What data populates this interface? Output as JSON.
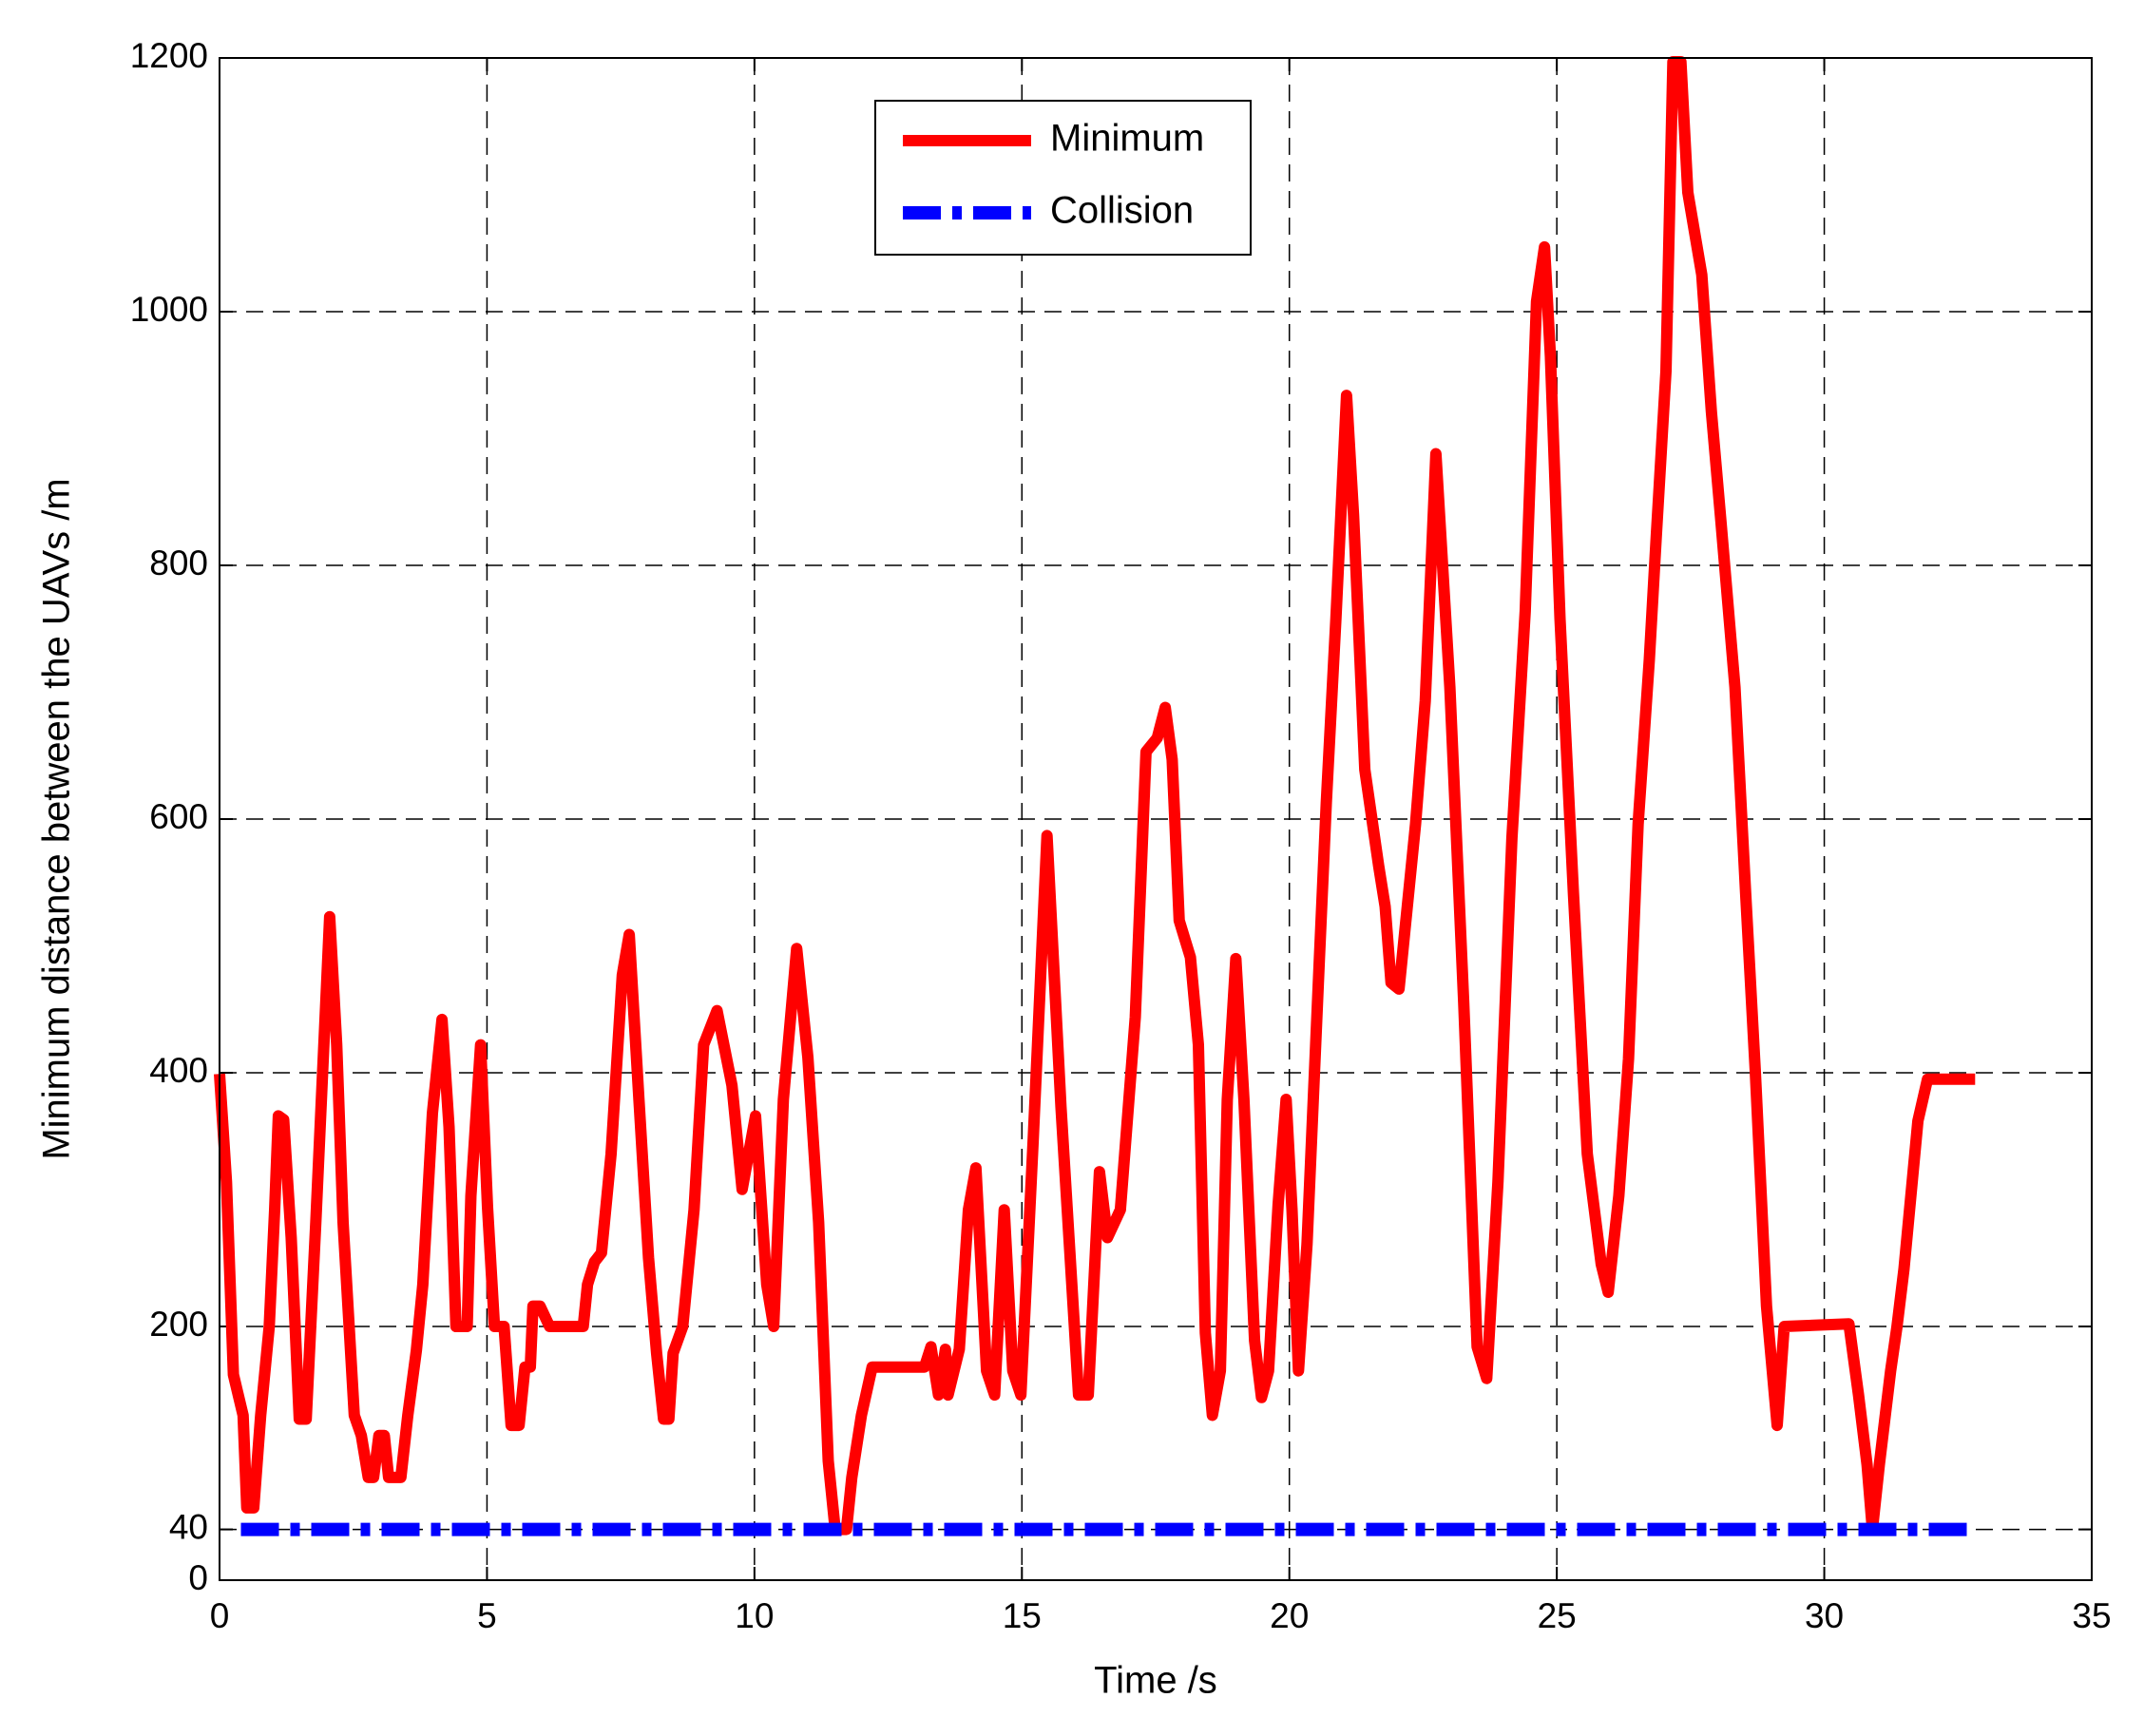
{
  "chart_data": {
    "type": "line",
    "xlabel": "Time /s",
    "ylabel": "Minimum distance between the UAVs /m",
    "xlim": [
      0,
      35
    ],
    "xticks": [
      0,
      5,
      10,
      15,
      20,
      25,
      30,
      35
    ],
    "ylim": [
      0,
      1200
    ],
    "yticks": [
      0,
      40,
      200,
      400,
      600,
      800,
      1000,
      1200
    ],
    "grid": true,
    "series": [
      {
        "name": "Minimum",
        "color": "#ff0000",
        "style": "solid",
        "x": [
          0,
          0.13,
          0.26,
          0.44,
          0.51,
          0.64,
          0.77,
          0.93,
          1.03,
          1.1,
          1.2,
          1.34,
          1.49,
          1.62,
          1.8,
          2.06,
          2.19,
          2.31,
          2.52,
          2.65,
          2.78,
          2.88,
          2.98,
          3.08,
          3.16,
          3.39,
          3.52,
          3.68,
          3.8,
          3.98,
          4.16,
          4.29,
          4.42,
          4.63,
          4.7,
          4.88,
          5.01,
          5.14,
          5.32,
          5.45,
          5.6,
          5.71,
          5.81,
          5.86,
          5.99,
          6.17,
          6.8,
          6.88,
          7.01,
          7.14,
          7.32,
          7.53,
          7.66,
          7.84,
          8.02,
          8.17,
          8.3,
          8.4,
          8.48,
          8.66,
          8.87,
          9.05,
          9.3,
          9.58,
          9.77,
          10.02,
          10.23,
          10.36,
          10.54,
          10.79,
          11.0,
          11.2,
          11.38,
          11.51,
          11.72,
          11.82,
          12.0,
          12.2,
          13.18,
          13.3,
          13.44,
          13.57,
          13.62,
          13.83,
          14.0,
          14.14,
          14.34,
          14.49,
          14.67,
          14.83,
          14.98,
          15.21,
          15.47,
          15.73,
          16.06,
          16.24,
          16.45,
          16.6,
          16.84,
          17.12,
          17.32,
          17.53,
          17.68,
          17.81,
          17.94,
          18.15,
          18.3,
          18.43,
          18.56,
          18.71,
          18.84,
          19.0,
          19.15,
          19.35,
          19.48,
          19.61,
          19.79,
          19.94,
          20.05,
          20.17,
          20.33,
          20.56,
          20.69,
          20.87,
          21.07,
          21.2,
          21.41,
          21.67,
          21.79,
          21.9,
          22.05,
          22.36,
          22.54,
          22.74,
          23.0,
          23.26,
          23.51,
          23.69,
          23.9,
          24.16,
          24.41,
          24.62,
          24.77,
          24.88,
          25.06,
          25.31,
          25.57,
          25.83,
          25.96,
          26.16,
          26.34,
          26.52,
          26.73,
          26.86,
          27.04,
          27.17,
          27.32,
          27.45,
          27.71,
          27.89,
          28.07,
          28.33,
          28.53,
          28.71,
          28.92,
          29.12,
          29.25,
          30.46,
          30.64,
          30.8,
          30.9,
          31.03,
          31.24,
          31.36,
          31.49,
          31.75,
          31.93,
          32.82
        ],
        "values": [
          399,
          314,
          162,
          130,
          57,
          57,
          130,
          200,
          292,
          366,
          363,
          270,
          127,
          127,
          282,
          523,
          422,
          282,
          130,
          114,
          81,
          81,
          114,
          114,
          81,
          81,
          130,
          181,
          233,
          368,
          442,
          357,
          200,
          200,
          303,
          422,
          294,
          200,
          200,
          122,
          122,
          168,
          168,
          216,
          216,
          200,
          200,
          233,
          251,
          258,
          336,
          477,
          509,
          379,
          254,
          179,
          127,
          127,
          179,
          200,
          292,
          422,
          449,
          390,
          308,
          366,
          233,
          200,
          379,
          498,
          412,
          282,
          94,
          40,
          40,
          81,
          130,
          168,
          168,
          184,
          146,
          182,
          146,
          182,
          292,
          325,
          165,
          146,
          292,
          165,
          146,
          346,
          587,
          373,
          146,
          146,
          322,
          270,
          292,
          444,
          653,
          664,
          688,
          647,
          520,
          491,
          422,
          195,
          130,
          165,
          379,
          490,
          379,
          189,
          144,
          165,
          296,
          379,
          292,
          165,
          265,
          488,
          613,
          758,
          934,
          839,
          639,
          563,
          531,
          471,
          466,
          596,
          693,
          888,
          704,
          455,
          184,
          159,
          314,
          585,
          764,
          1008,
          1051,
          965,
          758,
          542,
          336,
          249,
          227,
          303,
          411,
          596,
          726,
          823,
          953,
          1197,
          1197,
          1094,
          1029,
          921,
          834,
          704,
          542,
          401,
          216,
          122,
          200,
          202,
          146,
          91,
          40,
          91,
          165,
          200,
          245,
          362,
          395,
          395
        ]
      },
      {
        "name": "Collision",
        "color": "#0000ff",
        "style": "dashdot",
        "x": [
          0.4,
          32.7
        ],
        "values": [
          40,
          40
        ]
      }
    ]
  }
}
